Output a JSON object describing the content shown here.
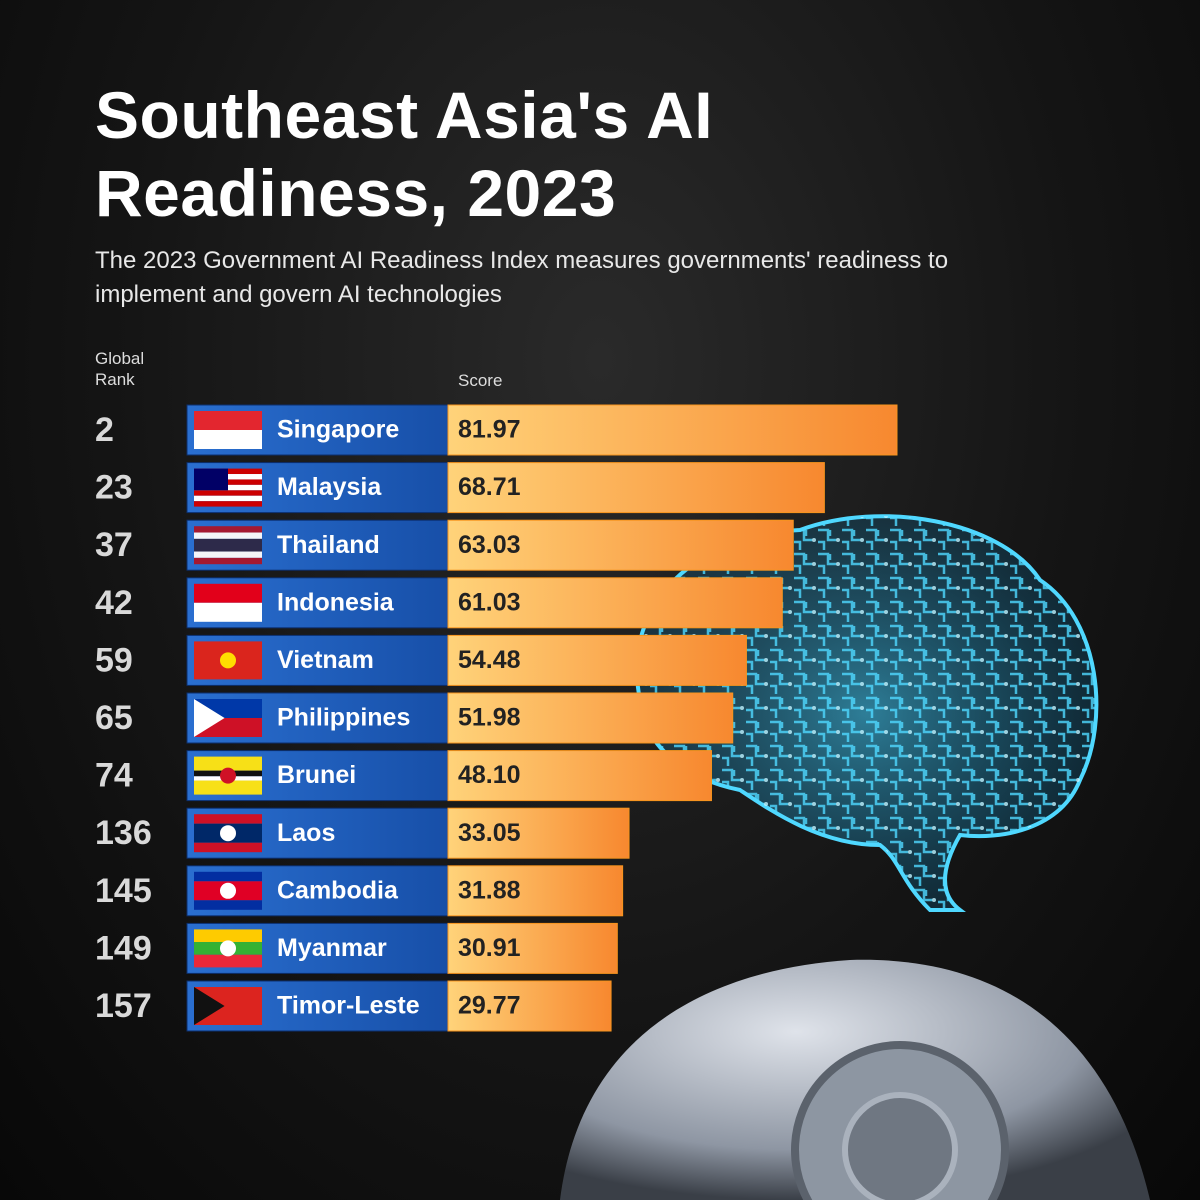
{
  "chart_data": {
    "type": "bar",
    "orientation": "horizontal",
    "title": "Southeast Asia's AI Readiness, 2023",
    "subtitle": "The 2023 Government AI Readiness Index measures governments' readiness to implement and govern AI technologies",
    "rank_label": "Global Rank",
    "value_label": "Score",
    "ranks": [
      "2",
      "23",
      "37",
      "42",
      "59",
      "65",
      "74",
      "136",
      "145",
      "149",
      "157"
    ],
    "categories": [
      "Singapore",
      "Malaysia",
      "Thailand",
      "Indonesia",
      "Vietnam",
      "Philippines",
      "Brunei",
      "Laos",
      "Cambodia",
      "Myanmar",
      "Timor-Leste"
    ],
    "values": [
      81.97,
      68.71,
      63.03,
      61.03,
      54.48,
      51.98,
      48.1,
      33.05,
      31.88,
      30.91,
      29.77
    ],
    "value_labels": [
      "81.97",
      "68.71",
      "63.03",
      "61.03",
      "54.48",
      "51.98",
      "48.10",
      "33.05",
      "31.88",
      "30.91",
      "29.77"
    ],
    "color": "#f7941d"
  }
}
